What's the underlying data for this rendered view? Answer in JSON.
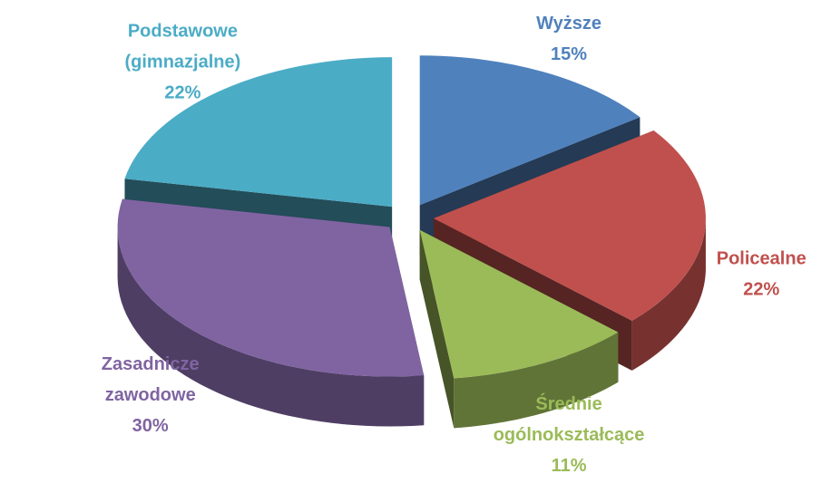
{
  "chart_data": {
    "type": "pie3d",
    "categories": [
      "Wyższe",
      "Policealne",
      "Średnie ogólnokształcące",
      "Zasadnicze zawodowe",
      "Podstawowe (gimnazjalne)"
    ],
    "values": [
      15,
      22,
      11,
      30,
      22
    ],
    "value_labels": [
      "15%",
      "22%",
      "11%",
      "30%",
      "22%"
    ],
    "colors": [
      "#4f81bd",
      "#c0504d",
      "#9bbb59",
      "#8064a2",
      "#4bacc6"
    ]
  }
}
